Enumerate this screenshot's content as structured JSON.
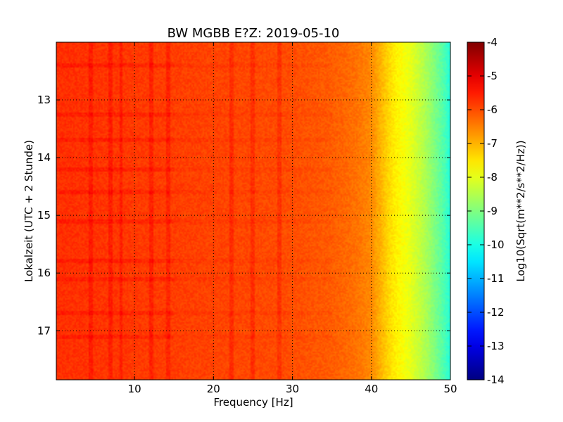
{
  "chart_data": {
    "type": "heatmap",
    "title": "BW MGBB E?Z: 2019-05-10",
    "xlabel": "Frequency [Hz]",
    "ylabel": "Lokalzeit (UTC + 2 Stunde)",
    "xlim": [
      0.1,
      50
    ],
    "ylim": [
      17.85,
      12.0
    ],
    "x_ticks": [
      "10",
      "20",
      "30",
      "40",
      "50"
    ],
    "x_tick_values": [
      10,
      20,
      30,
      40,
      50
    ],
    "y_ticks": [
      "13",
      "14",
      "15",
      "16",
      "17"
    ],
    "y_tick_values": [
      13,
      14,
      15,
      16,
      17
    ],
    "grid": true,
    "colorbar": {
      "label": "Log10(Sqrt(m**2/s**2/Hz))",
      "range": [
        -14,
        -4
      ],
      "ticks": [
        "-4",
        "-5",
        "-6",
        "-7",
        "-8",
        "-9",
        "-10",
        "-11",
        "-12",
        "-13",
        "-14"
      ],
      "tick_values": [
        -4,
        -5,
        -6,
        -7,
        -8,
        -9,
        -10,
        -11,
        -12,
        -13,
        -14
      ],
      "colormap": "jet"
    },
    "spectrum_profile": {
      "frequency_hz": [
        0,
        5,
        10,
        15,
        20,
        25,
        30,
        35,
        38,
        40,
        41,
        42,
        43,
        44,
        45,
        46,
        47,
        48,
        49,
        50
      ],
      "level": [
        -5.7,
        -5.75,
        -5.8,
        -5.85,
        -5.9,
        -5.95,
        -6.0,
        -6.15,
        -6.35,
        -6.6,
        -6.95,
        -7.3,
        -7.6,
        -7.8,
        -8.0,
        -8.3,
        -8.6,
        -9.0,
        -9.4,
        -9.9
      ]
    },
    "spectral_lines_hz": [
      4.5,
      7,
      8.3,
      12.2,
      14.3,
      22.3,
      25,
      28.3
    ],
    "time_bands_hour": [
      12.4,
      13.25,
      13.7,
      14.2,
      14.6,
      15.1,
      15.8,
      16.1,
      16.7,
      17.1
    ]
  }
}
